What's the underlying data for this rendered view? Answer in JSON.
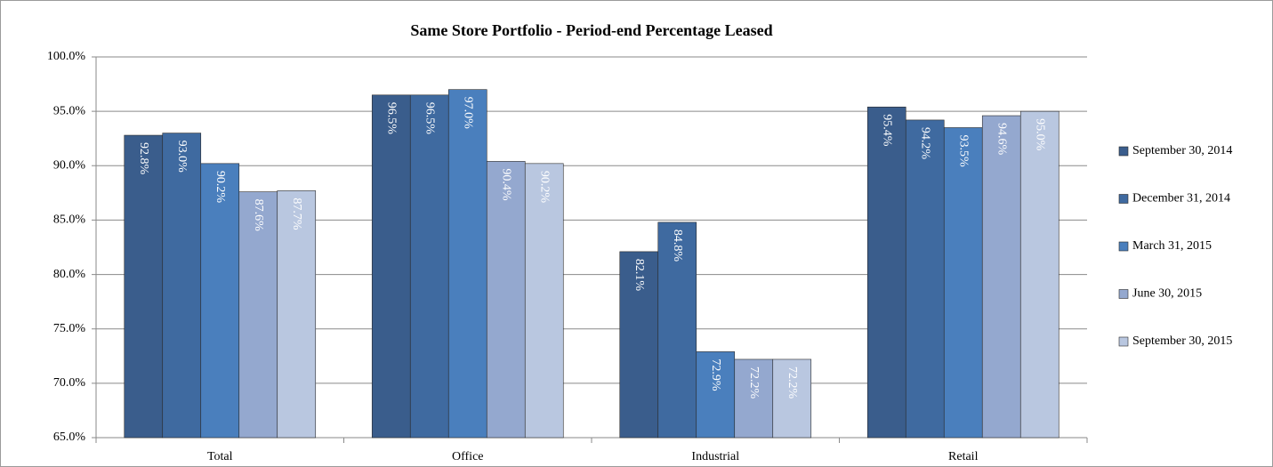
{
  "chart_data": {
    "type": "bar",
    "title": "Same Store Portfolio - Period-end Percentage Leased",
    "categories": [
      "Total",
      "Office",
      "Industrial",
      "Retail"
    ],
    "series": [
      {
        "name": "September 30, 2014",
        "color": "#3a5d8c",
        "values": [
          92.8,
          96.5,
          82.1,
          95.4
        ],
        "value_labels": [
          "92.8%",
          "96.5%",
          "82.1%",
          "95.4%"
        ]
      },
      {
        "name": "December 31, 2014",
        "color": "#3f6aa0",
        "values": [
          93.0,
          96.5,
          84.8,
          94.2
        ],
        "value_labels": [
          "93.0%",
          "96.5%",
          "84.8%",
          "94.2%"
        ]
      },
      {
        "name": "March 31, 2015",
        "color": "#4a7fbd",
        "values": [
          90.2,
          97.0,
          72.9,
          93.5
        ],
        "value_labels": [
          "90.2%",
          "97.0%",
          "72.9%",
          "93.5%"
        ]
      },
      {
        "name": "June 30, 2015",
        "color": "#94a8cf",
        "values": [
          87.6,
          90.4,
          72.2,
          94.6
        ],
        "value_labels": [
          "87.6%",
          "90.4%",
          "72.2%",
          "94.6%"
        ]
      },
      {
        "name": "September 30, 2015",
        "color": "#b9c7e0",
        "values": [
          87.7,
          90.2,
          72.2,
          95.0
        ],
        "value_labels": [
          "87.7%",
          "90.2%",
          "72.2%",
          "95.0%"
        ]
      }
    ],
    "ylim": [
      65,
      100
    ],
    "yticks": [
      {
        "value": 65,
        "label": "65.0%"
      },
      {
        "value": 70,
        "label": "70.0%"
      },
      {
        "value": 75,
        "label": "75.0%"
      },
      {
        "value": 80,
        "label": "80.0%"
      },
      {
        "value": 85,
        "label": "85.0%"
      },
      {
        "value": 90,
        "label": "90.0%"
      },
      {
        "value": 95,
        "label": "95.0%"
      },
      {
        "value": 100,
        "label": "100.0%"
      }
    ],
    "grid": true,
    "legend": "right"
  }
}
